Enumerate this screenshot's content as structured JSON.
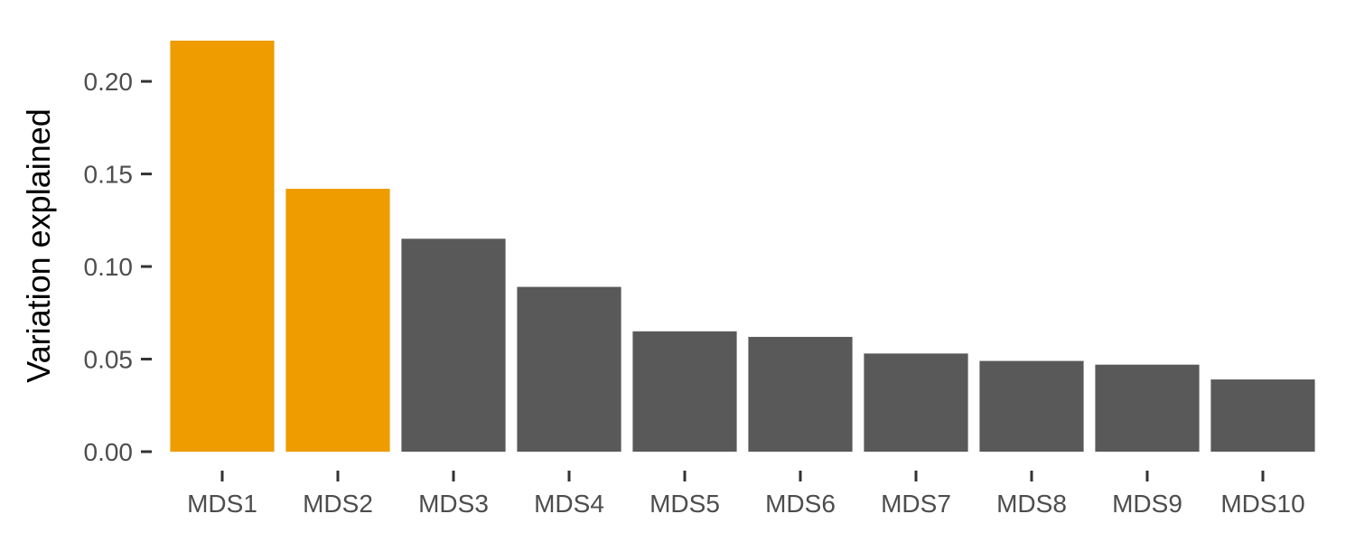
{
  "chart_data": {
    "type": "bar",
    "title": "",
    "xlabel": "",
    "ylabel": "Variation explained",
    "categories": [
      "MDS1",
      "MDS2",
      "MDS3",
      "MDS4",
      "MDS5",
      "MDS6",
      "MDS7",
      "MDS8",
      "MDS9",
      "MDS10"
    ],
    "values": [
      0.222,
      0.142,
      0.115,
      0.089,
      0.065,
      0.062,
      0.053,
      0.049,
      0.047,
      0.039
    ],
    "highlighted": [
      "MDS1",
      "MDS2"
    ],
    "y_ticks": [
      "0.00",
      "0.05",
      "0.10",
      "0.15",
      "0.20"
    ],
    "ylim": [
      0,
      0.222
    ],
    "grid": false,
    "legend": "none",
    "colors": {
      "highlight": "#EE9C00",
      "default": "#595959"
    }
  }
}
